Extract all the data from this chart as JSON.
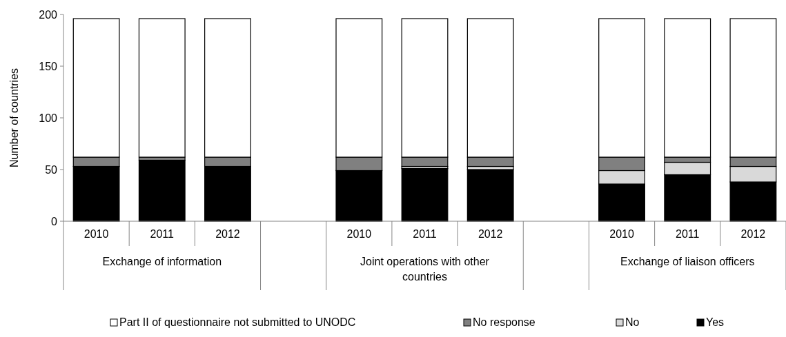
{
  "chart_data": {
    "type": "bar",
    "stacked": true,
    "ylabel": "Number of countries",
    "categories": [
      "2010",
      "2011",
      "2012",
      null,
      "2010",
      "2011",
      "2012",
      null,
      "2010",
      "2011",
      "2012"
    ],
    "series": [
      {
        "name": "Yes",
        "color": "#000000",
        "values": [
          53,
          59,
          53,
          null,
          49,
          51,
          50,
          null,
          36,
          45,
          38
        ]
      },
      {
        "name": "No",
        "color": "#d9d9d9",
        "values": [
          0,
          0,
          0,
          null,
          0,
          2,
          3,
          null,
          13,
          12,
          15
        ]
      },
      {
        "name": "No response",
        "color": "#808080",
        "values": [
          9,
          3,
          9,
          null,
          13,
          9,
          9,
          null,
          13,
          5,
          9
        ]
      },
      {
        "name": "Part II of questionnaire not submitted to UNODC",
        "color": "#ffffff",
        "values": [
          134,
          134,
          134,
          null,
          134,
          134,
          134,
          null,
          134,
          134,
          134
        ]
      }
    ],
    "ylim": [
      0,
      200
    ],
    "yticks": [
      0,
      50,
      100,
      150,
      200
    ],
    "grid": false,
    "legend": "bottom",
    "annotations": [
      "Exchange of information",
      "Joint operations with other countries",
      "Exchange of liaison officers"
    ]
  }
}
